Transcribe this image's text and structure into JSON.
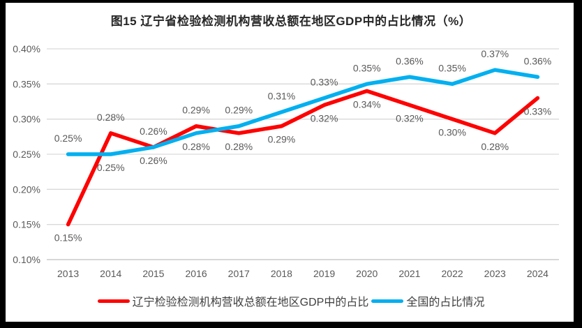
{
  "chart_data": {
    "type": "line",
    "title": "图15 辽宁省检验检测机构营收总额在地区GDP中的占比情况（%）",
    "categories": [
      "2013",
      "2014",
      "2015",
      "2016",
      "2017",
      "2018",
      "2019",
      "2020",
      "2021",
      "2022",
      "2023",
      "2024"
    ],
    "series": [
      {
        "name": "辽宁检验检测机构营收总额在地区GDP中的占比",
        "color": "#FF0000",
        "values": [
          0.15,
          0.28,
          0.26,
          0.29,
          0.28,
          0.29,
          0.32,
          0.34,
          0.32,
          0.3,
          0.28,
          0.33
        ],
        "point_labels": [
          "0.15%",
          "0.28%",
          "0.26%",
          "0.29%",
          "0.28%",
          "0.29%",
          "0.32%",
          "0.34%",
          "0.32%",
          "0.30%",
          "0.28%",
          "0.33%"
        ],
        "label_positions": [
          "below",
          "above",
          "above",
          "above",
          "below",
          "below",
          "below",
          "below",
          "below",
          "below",
          "below",
          "below"
        ]
      },
      {
        "name": "全国的占比情况",
        "color": "#00B0F0",
        "values": [
          0.25,
          0.25,
          0.26,
          0.28,
          0.29,
          0.31,
          0.33,
          0.35,
          0.36,
          0.35,
          0.37,
          0.36
        ],
        "point_labels": [
          "0.25%",
          "0.25%",
          "0.26%",
          "0.28%",
          "0.29%",
          "0.31%",
          "0.33%",
          "0.35%",
          "0.36%",
          "0.35%",
          "0.37%",
          "0.36%"
        ],
        "label_positions": [
          "above",
          "below",
          "below",
          "below",
          "above",
          "above",
          "above",
          "above",
          "above",
          "above",
          "above",
          "above"
        ]
      }
    ],
    "y_axis": {
      "tick_labels": [
        "0.40%",
        "0.35%",
        "0.30%",
        "0.25%",
        "0.20%",
        "0.15%",
        "0.10%"
      ],
      "min": 0.1,
      "max": 0.4,
      "step": 0.05
    },
    "grid": true,
    "legend_position": "bottom",
    "colors": {
      "grid_line": "#D9D9D9",
      "axis_line": "#BFBFBF",
      "tick_text": "#595959",
      "data_label_text": "#595959",
      "panel_background": "#FFFFFF",
      "frame_border": "#000000"
    }
  }
}
